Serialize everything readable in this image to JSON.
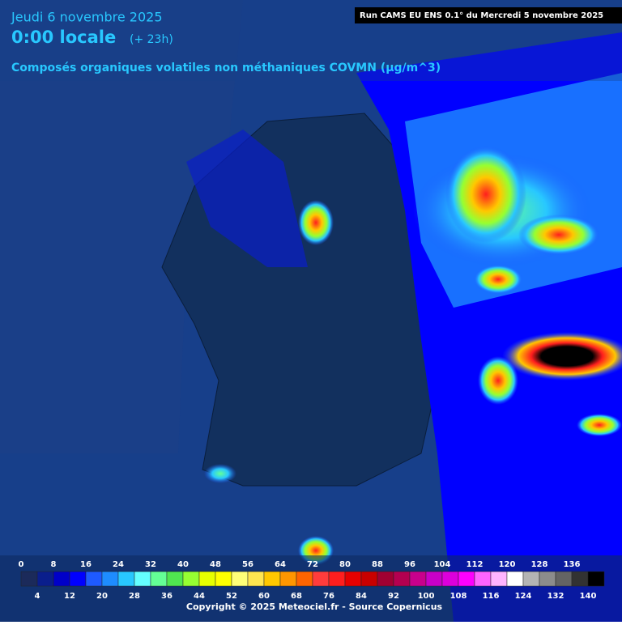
{
  "header": {
    "date": "Jeudi 6 novembre 2025",
    "time": "0:00 locale",
    "offset": "(+ 23h)",
    "subtitle": "Composés organiques volatiles non méthaniques COVMN (µg/m^3)",
    "run": "Run CAMS EU ENS 0.1° du Mercredi 5 novembre 2025"
  },
  "legend": {
    "scale": [
      0,
      4,
      8,
      12,
      16,
      20,
      24,
      28,
      32,
      36,
      40,
      44,
      48,
      52,
      56,
      60,
      64,
      68,
      72,
      76,
      80,
      84,
      88,
      92,
      96,
      100,
      104,
      108,
      112,
      116,
      120,
      124,
      128,
      132,
      136,
      140
    ],
    "colors": [
      "#1b2a5a",
      "#0a1e8c",
      "#0000c8",
      "#0000ff",
      "#1e5aff",
      "#1e8cff",
      "#28c8ff",
      "#64ffff",
      "#64ff96",
      "#50e650",
      "#96ff32",
      "#e6ff00",
      "#ffff00",
      "#ffff78",
      "#ffe650",
      "#ffc800",
      "#ff9600",
      "#ff6400",
      "#ff3c3c",
      "#ff1e1e",
      "#e60000",
      "#c80000",
      "#a00032",
      "#b40050",
      "#c8008c",
      "#c800c8",
      "#dc00dc",
      "#ff00ff",
      "#ff64ff",
      "#ffb4ff",
      "#ffffff",
      "#b4b4b4",
      "#8c8c8c",
      "#646464",
      "#323232",
      "#000000"
    ]
  },
  "footer": {
    "copyright": "Copyright © 2025 Meteociel.fr - Source Copernicus"
  }
}
